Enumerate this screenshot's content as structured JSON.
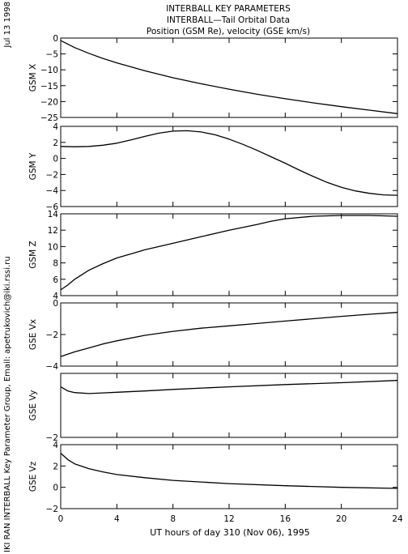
{
  "header": {
    "line1": "INTERBALL KEY PARAMETERS",
    "line2": "INTERBALL—Tail Orbital Data",
    "line3": "Position (GSM Re), velocity (GSE km/s)"
  },
  "side_date": "Jul 13 1998",
  "side_credit": "IKI RAN INTERBALL Key Parameter Group, Email: apetrukovich@iki.rssi.ru",
  "xaxis": {
    "label": "UT hours of day 310 (Nov 06), 1995",
    "ticks": [
      0,
      4,
      8,
      12,
      16,
      20,
      24
    ],
    "range": [
      0,
      24
    ]
  },
  "chart_data": [
    {
      "type": "line",
      "ylabel": "GSM X",
      "ylim": [
        -25,
        0
      ],
      "yticks": [
        0,
        -5,
        -10,
        -15,
        -20,
        -25
      ],
      "ytick_labels": [
        "0",
        "−5",
        "−10",
        "−15",
        "−20",
        "−25"
      ],
      "x": [
        0,
        1,
        2,
        3,
        4,
        6,
        8,
        10,
        12,
        14,
        16,
        18,
        20,
        22,
        24
      ],
      "y": [
        -0.8,
        -3.0,
        -4.8,
        -6.4,
        -7.8,
        -10.3,
        -12.5,
        -14.4,
        -16.1,
        -17.7,
        -19.1,
        -20.4,
        -21.6,
        -22.7,
        -23.8
      ]
    },
    {
      "type": "line",
      "ylabel": "GSM Y",
      "ylim": [
        -6,
        4
      ],
      "yticks": [
        4,
        2,
        0,
        -2,
        -4,
        -6
      ],
      "ytick_labels": [
        "4",
        "2",
        "0",
        "−2",
        "−4",
        "−6"
      ],
      "x": [
        0,
        1,
        2,
        3,
        4,
        5,
        6,
        7,
        8,
        9,
        10,
        11,
        12,
        13,
        14,
        15,
        16,
        17,
        18,
        19,
        20,
        21,
        22,
        23,
        24
      ],
      "y": [
        1.5,
        1.45,
        1.5,
        1.65,
        1.9,
        2.3,
        2.75,
        3.15,
        3.4,
        3.45,
        3.3,
        2.95,
        2.4,
        1.75,
        1.0,
        0.2,
        -0.6,
        -1.45,
        -2.25,
        -3.0,
        -3.6,
        -4.05,
        -4.35,
        -4.55,
        -4.6
      ]
    },
    {
      "type": "line",
      "ylabel": "GSM Z",
      "ylim": [
        4,
        14
      ],
      "yticks": [
        4,
        6,
        8,
        10,
        12,
        14
      ],
      "ytick_labels": [
        "4",
        "6",
        "8",
        "10",
        "12",
        "14"
      ],
      "x": [
        0,
        0.5,
        1,
        2,
        3,
        4,
        5,
        6,
        8,
        10,
        12,
        14,
        15,
        16,
        18,
        20,
        22,
        24
      ],
      "y": [
        4.7,
        5.3,
        6.0,
        7.1,
        7.9,
        8.6,
        9.1,
        9.6,
        10.4,
        11.2,
        12.0,
        12.7,
        13.1,
        13.4,
        13.7,
        13.8,
        13.8,
        13.7
      ]
    },
    {
      "type": "line",
      "ylabel": "GSE Vx",
      "ylim": [
        -4,
        0
      ],
      "yticks": [
        0,
        -2,
        -4
      ],
      "ytick_labels": [
        "0",
        "−2",
        "−4"
      ],
      "x": [
        0,
        1,
        2,
        3,
        4,
        6,
        8,
        10,
        12,
        14,
        16,
        18,
        20,
        22,
        24
      ],
      "y": [
        -3.4,
        -3.1,
        -2.85,
        -2.6,
        -2.4,
        -2.05,
        -1.8,
        -1.6,
        -1.45,
        -1.3,
        -1.15,
        -1.0,
        -0.85,
        -0.72,
        -0.6
      ]
    },
    {
      "type": "line",
      "ylabel": "GSE Vy",
      "ylim": [
        -2,
        0
      ],
      "yticks": [
        0,
        -2
      ],
      "ytick_labels": [
        "",
        "−2"
      ],
      "x": [
        0,
        0.5,
        1,
        2,
        3,
        4,
        6,
        8,
        12,
        16,
        20,
        24
      ],
      "y": [
        -0.42,
        -0.55,
        -0.6,
        -0.63,
        -0.61,
        -0.59,
        -0.55,
        -0.5,
        -0.42,
        -0.35,
        -0.29,
        -0.22
      ]
    },
    {
      "type": "line",
      "ylabel": "GSE Vz",
      "ylim": [
        -2,
        4
      ],
      "yticks": [
        4,
        2,
        0,
        -2
      ],
      "ytick_labels": [
        "4",
        "2",
        "0",
        "−2"
      ],
      "x": [
        0,
        0.5,
        1,
        2,
        3,
        4,
        6,
        8,
        10,
        12,
        16,
        20,
        24
      ],
      "y": [
        3.2,
        2.6,
        2.2,
        1.75,
        1.45,
        1.2,
        0.9,
        0.65,
        0.5,
        0.35,
        0.15,
        0.0,
        -0.1
      ]
    }
  ]
}
